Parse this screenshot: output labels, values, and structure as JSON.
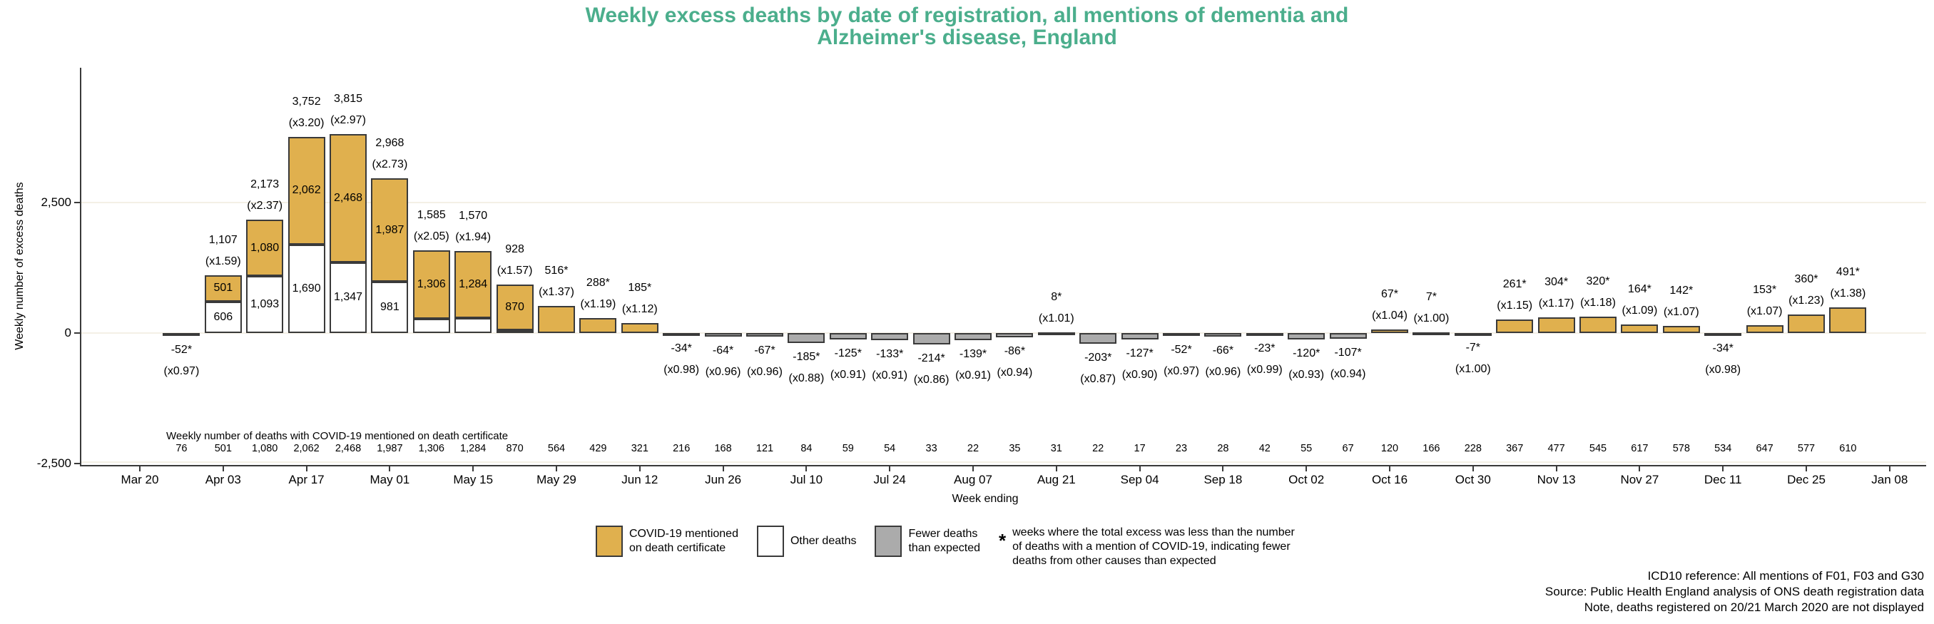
{
  "title": {
    "line1": "Weekly excess deaths by date of registration, all mentions of dementia and",
    "line2": "Alzheimer's disease, England"
  },
  "colors": {
    "title_green": "#4bae8c",
    "covid_bar": "#e0b04e",
    "other_bar": "#ffffff",
    "fewer_bar": "#ababab",
    "bar_border": "#3a3a3a",
    "gridline": "#f4f0e6",
    "axis": "#3a3a3a"
  },
  "y_axis": {
    "title": "Weekly number of excess deaths",
    "ticks": [
      {
        "label": "2,500",
        "value": 2500
      },
      {
        "label": "0",
        "value": 0
      },
      {
        "label": "-2,500",
        "value": -2500
      }
    ]
  },
  "x_axis": {
    "title": "Week ending",
    "ticks": [
      "Mar 20",
      "Apr 03",
      "Apr 17",
      "May 01",
      "May 15",
      "May 29",
      "Jun 12",
      "Jun 26",
      "Jul 10",
      "Jul 24",
      "Aug 07",
      "Aug 21",
      "Sep 04",
      "Sep 18",
      "Oct 02",
      "Oct 16",
      "Oct 30",
      "Nov 13",
      "Nov 27",
      "Dec 11",
      "Dec 25",
      "Jan 08"
    ]
  },
  "covid_row": {
    "header": "Weekly number of deaths with COVID-19 mentioned on death certificate"
  },
  "chart_data": {
    "type": "bar",
    "stacked": true,
    "title": "Weekly excess deaths by date of registration, all mentions of dementia and Alzheimer's disease, England",
    "xlabel": "Week ending",
    "ylabel": "Weekly number of excess deaths",
    "ylim": [
      -2500,
      5100
    ],
    "grid": "horizontal gridlines at 2,500 and 0",
    "legend_position": "bottom",
    "bars": [
      {
        "week": "Mar 27",
        "kind": "fewer",
        "total": -52,
        "label": "-52*",
        "mult": "(x0.97)",
        "covid_row": "76"
      },
      {
        "week": "Apr 03",
        "kind": "stacked",
        "total": 1107,
        "label": "1,107",
        "mult": "(x1.59)",
        "covid": 501,
        "covid_label": "501",
        "other": 606,
        "other_label": "606",
        "covid_row": "501"
      },
      {
        "week": "Apr 10",
        "kind": "stacked",
        "total": 2173,
        "label": "2,173",
        "mult": "(x2.37)",
        "covid": 1080,
        "covid_label": "1,080",
        "other": 1093,
        "other_label": "1,093",
        "covid_row": "1,080"
      },
      {
        "week": "Apr 17",
        "kind": "stacked",
        "total": 3752,
        "label": "3,752",
        "mult": "(x3.20)",
        "covid": 2062,
        "covid_label": "2,062",
        "other": 1690,
        "other_label": "1,690",
        "covid_row": "2,062"
      },
      {
        "week": "Apr 24",
        "kind": "stacked",
        "total": 3815,
        "label": "3,815",
        "mult": "(x2.97)",
        "covid": 2468,
        "covid_label": "2,468",
        "other": 1347,
        "other_label": "1,347",
        "covid_row": "2,468"
      },
      {
        "week": "May 01",
        "kind": "stacked",
        "total": 2968,
        "label": "2,968",
        "mult": "(x2.73)",
        "covid": 1987,
        "covid_label": "1,987",
        "other": 981,
        "other_label": "981",
        "covid_row": "1,987"
      },
      {
        "week": "May 08",
        "kind": "stacked",
        "total": 1585,
        "label": "1,585",
        "mult": "(x2.05)",
        "covid": 1306,
        "covid_label": "1,306",
        "other": 279,
        "other_label": "",
        "covid_row": "1,306"
      },
      {
        "week": "May 15",
        "kind": "stacked",
        "total": 1570,
        "label": "1,570",
        "mult": "(x1.94)",
        "covid": 1284,
        "covid_label": "1,284",
        "other": 286,
        "other_label": "",
        "covid_row": "1,284"
      },
      {
        "week": "May 22",
        "kind": "stacked",
        "total": 928,
        "label": "928",
        "mult": "(x1.57)",
        "covid": 870,
        "covid_label": "870",
        "other": 58,
        "other_label": "",
        "covid_row": "870"
      },
      {
        "week": "May 29",
        "kind": "covid",
        "total": 516,
        "label": "516*",
        "mult": "(x1.37)",
        "covid_row": "564"
      },
      {
        "week": "Jun 05",
        "kind": "covid",
        "total": 288,
        "label": "288*",
        "mult": "(x1.19)",
        "covid_row": "429"
      },
      {
        "week": "Jun 12",
        "kind": "covid",
        "total": 185,
        "label": "185*",
        "mult": "(x1.12)",
        "covid_row": "321"
      },
      {
        "week": "Jun 19",
        "kind": "fewer",
        "total": -34,
        "label": "-34*",
        "mult": "(x0.98)",
        "covid_row": "216"
      },
      {
        "week": "Jun 26",
        "kind": "fewer",
        "total": -64,
        "label": "-64*",
        "mult": "(x0.96)",
        "covid_row": "168"
      },
      {
        "week": "Jul 03",
        "kind": "fewer",
        "total": -67,
        "label": "-67*",
        "mult": "(x0.96)",
        "covid_row": "121"
      },
      {
        "week": "Jul 10",
        "kind": "fewer",
        "total": -185,
        "label": "-185*",
        "mult": "(x0.88)",
        "covid_row": "84"
      },
      {
        "week": "Jul 17",
        "kind": "fewer",
        "total": -125,
        "label": "-125*",
        "mult": "(x0.91)",
        "covid_row": "59"
      },
      {
        "week": "Jul 24",
        "kind": "fewer",
        "total": -133,
        "label": "-133*",
        "mult": "(x0.91)",
        "covid_row": "54"
      },
      {
        "week": "Jul 31",
        "kind": "fewer",
        "total": -214,
        "label": "-214*",
        "mult": "(x0.86)",
        "covid_row": "33"
      },
      {
        "week": "Aug 07",
        "kind": "fewer",
        "total": -139,
        "label": "-139*",
        "mult": "(x0.91)",
        "covid_row": "22"
      },
      {
        "week": "Aug 14",
        "kind": "fewer",
        "total": -86,
        "label": "-86*",
        "mult": "(x0.94)",
        "covid_row": "35"
      },
      {
        "week": "Aug 21",
        "kind": "covid",
        "total": 8,
        "label": "8*",
        "mult": "(x1.01)",
        "covid_row": "31"
      },
      {
        "week": "Aug 28",
        "kind": "fewer",
        "total": -203,
        "label": "-203*",
        "mult": "(x0.87)",
        "covid_row": "22"
      },
      {
        "week": "Sep 04",
        "kind": "fewer",
        "total": -127,
        "label": "-127*",
        "mult": "(x0.90)",
        "covid_row": "17"
      },
      {
        "week": "Sep 11",
        "kind": "fewer",
        "total": -52,
        "label": "-52*",
        "mult": "(x0.97)",
        "covid_row": "23"
      },
      {
        "week": "Sep 18",
        "kind": "fewer",
        "total": -66,
        "label": "-66*",
        "mult": "(x0.96)",
        "covid_row": "28"
      },
      {
        "week": "Sep 25",
        "kind": "fewer",
        "total": -23,
        "label": "-23*",
        "mult": "(x0.99)",
        "covid_row": "42"
      },
      {
        "week": "Oct 02",
        "kind": "fewer",
        "total": -120,
        "label": "-120*",
        "mult": "(x0.93)",
        "covid_row": "55"
      },
      {
        "week": "Oct 09",
        "kind": "fewer",
        "total": -107,
        "label": "-107*",
        "mult": "(x0.94)",
        "covid_row": "67"
      },
      {
        "week": "Oct 16",
        "kind": "covid",
        "total": 67,
        "label": "67*",
        "mult": "(x1.04)",
        "covid_row": "120"
      },
      {
        "week": "Oct 23",
        "kind": "covid",
        "total": 7,
        "label": "7*",
        "mult": "(x1.00)",
        "covid_row": "166"
      },
      {
        "week": "Oct 30",
        "kind": "fewer",
        "total": -7,
        "label": "-7*",
        "mult": "(x1.00)",
        "covid_row": "228"
      },
      {
        "week": "Nov 06",
        "kind": "covid",
        "total": 261,
        "label": "261*",
        "mult": "(x1.15)",
        "covid_row": "367"
      },
      {
        "week": "Nov 13",
        "kind": "covid",
        "total": 304,
        "label": "304*",
        "mult": "(x1.17)",
        "covid_row": "477"
      },
      {
        "week": "Nov 20",
        "kind": "covid",
        "total": 320,
        "label": "320*",
        "mult": "(x1.18)",
        "covid_row": "545"
      },
      {
        "week": "Nov 27",
        "kind": "covid",
        "total": 164,
        "label": "164*",
        "mult": "(x1.09)",
        "covid_row": "617"
      },
      {
        "week": "Dec 04",
        "kind": "covid",
        "total": 142,
        "label": "142*",
        "mult": "(x1.07)",
        "covid_row": "578"
      },
      {
        "week": "Dec 11",
        "kind": "fewer",
        "total": -34,
        "label": "-34*",
        "mult": "(x0.98)",
        "covid_row": "534"
      },
      {
        "week": "Dec 18",
        "kind": "covid",
        "total": 153,
        "label": "153*",
        "mult": "(x1.07)",
        "covid_row": "647"
      },
      {
        "week": "Dec 25",
        "kind": "covid",
        "total": 360,
        "label": "360*",
        "mult": "(x1.23)",
        "covid_row": "577"
      },
      {
        "week": "Jan 01",
        "kind": "covid",
        "total": 491,
        "label": "491*",
        "mult": "(x1.38)",
        "covid_row": "610"
      }
    ]
  },
  "legend": {
    "items": [
      {
        "swatch": "covid",
        "label": "COVID-19 mentioned\non death certificate"
      },
      {
        "swatch": "other",
        "label": "Other deaths"
      },
      {
        "swatch": "fewer",
        "label": "Fewer deaths\nthan expected"
      },
      {
        "swatch": "star",
        "symbol": "*",
        "label": "weeks where the total excess was less than the number\nof deaths with a mention of COVID-19, indicating fewer\ndeaths from other causes than expected"
      }
    ]
  },
  "footnotes": [
    "ICD10 reference: All mentions of F01, F03 and G30",
    "Source: Public Health England analysis of ONS death registration data",
    "Note, deaths registered on 20/21 March 2020 are not displayed"
  ]
}
